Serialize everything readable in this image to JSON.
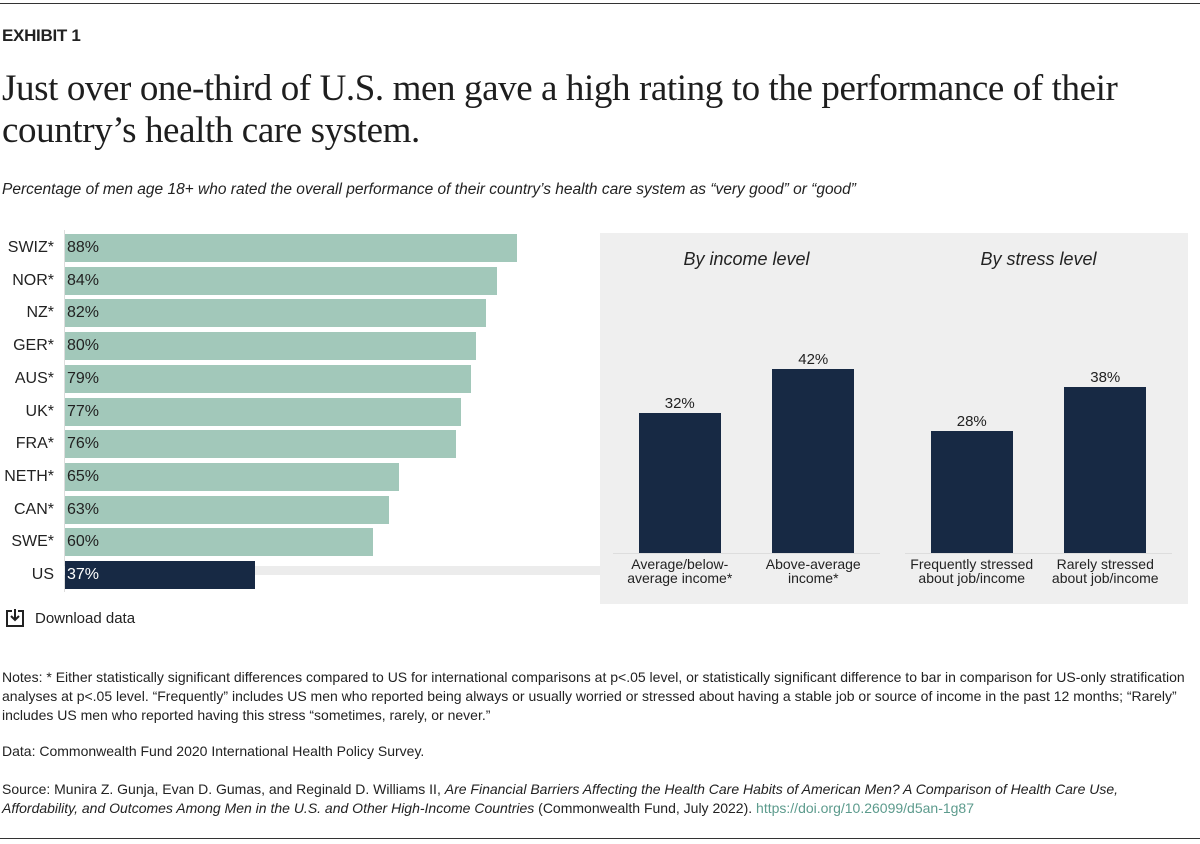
{
  "exhibit": "EXHIBIT 1",
  "title": "Just over one-third of U.S. men gave a high rating to the performance of their country’s health care system.",
  "subtitle": "Percentage of men age 18+ who rated the overall performance of their country’s health care system as “very good” or “good”",
  "chart_data": [
    {
      "type": "bar",
      "orientation": "horizontal",
      "categories": [
        "SWIZ*",
        "NOR*",
        "NZ*",
        "GER*",
        "AUS*",
        "UK*",
        "FRA*",
        "NETH*",
        "CAN*",
        "SWE*",
        "US"
      ],
      "values": [
        88,
        84,
        82,
        80,
        79,
        77,
        76,
        65,
        63,
        60,
        37
      ],
      "value_labels": [
        "88%",
        "84%",
        "82%",
        "80%",
        "79%",
        "77%",
        "76%",
        "65%",
        "63%",
        "60%",
        "37%"
      ],
      "colors": [
        "#a2c8ba",
        "#a2c8ba",
        "#a2c8ba",
        "#a2c8ba",
        "#a2c8ba",
        "#a2c8ba",
        "#a2c8ba",
        "#a2c8ba",
        "#a2c8ba",
        "#a2c8ba",
        "#172944"
      ]
    },
    {
      "type": "bar",
      "orientation": "vertical",
      "title": "By income level",
      "categories": [
        "Average/below-average income*",
        "Above-average income*"
      ],
      "values": [
        32,
        42
      ],
      "value_labels": [
        "32%",
        "42%"
      ],
      "color": "#172944"
    },
    {
      "type": "bar",
      "orientation": "vertical",
      "title": "By stress level",
      "categories": [
        "Frequently stressed about job/income",
        "Rarely stressed about job/income"
      ],
      "values": [
        28,
        38
      ],
      "value_labels": [
        "28%",
        "38%"
      ],
      "color": "#172944"
    }
  ],
  "download": "Download data",
  "notes": "Notes: * Either statistically significant differences compared to US for international comparisons at p<.05 level, or statistically significant difference to bar in comparison for US-only stratification analyses at p<.05 level. “Frequently” includes US men who reported being always or usually worried or stressed about having a stable job or source of income in the past 12 months; “Rarely” includes US men who reported having this stress “sometimes, rarely, or never.”",
  "data_note": "Data: Commonwealth Fund 2020 International Health Policy Survey.",
  "source": {
    "authors": "Source: Munira Z. Gunja, Evan D. Gumas, and Reginald D. Williams II,",
    "publication": "Are Financial Barriers Affecting the Health Care Habits of American Men? A Comparison of Health Care Use, Affordability, and Outcomes Among Men in the U.S. and Other High-Income Countries",
    "publisher": "(Commonwealth Fund, July 2022).",
    "link": "https://doi.org/10.26099/d5an-1g87"
  }
}
